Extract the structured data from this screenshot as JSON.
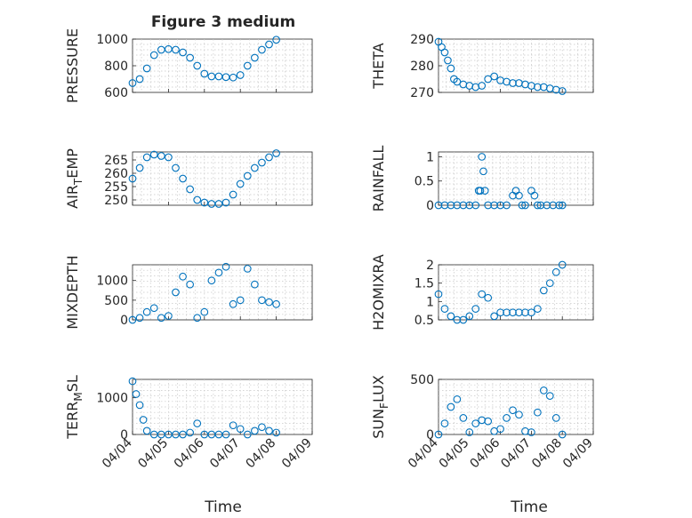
{
  "figure_title": "Figure 3 medium",
  "chart_data": [
    {
      "type": "scatter",
      "title": "Figure 3 medium",
      "ylabel": "PRESSURE",
      "ylim": [
        600,
        1000
      ],
      "yticks": [
        "600",
        "800",
        "1000"
      ],
      "ytick_values": [
        600,
        800,
        1000
      ],
      "series": [
        {
          "name": "",
          "color": "#0072BD",
          "x": [
            0.0,
            0.2,
            0.4,
            0.6,
            0.8,
            1.0,
            1.2,
            1.4,
            1.6,
            1.8,
            2.0,
            2.2,
            2.4,
            2.6,
            2.8,
            3.0,
            3.2,
            3.4,
            3.6,
            3.8,
            4.0
          ],
          "y": [
            670,
            700,
            780,
            880,
            920,
            925,
            920,
            900,
            860,
            800,
            740,
            720,
            720,
            715,
            712,
            730,
            800,
            860,
            920,
            960,
            995
          ]
        }
      ]
    },
    {
      "type": "scatter",
      "ylabel": "THETA",
      "ylim": [
        270,
        290
      ],
      "yticks": [
        "270",
        "280",
        "290"
      ],
      "ytick_values": [
        270,
        280,
        290
      ],
      "series": [
        {
          "name": "",
          "color": "#0072BD",
          "x": [
            0.0,
            0.1,
            0.2,
            0.3,
            0.4,
            0.5,
            0.6,
            0.8,
            1.0,
            1.2,
            1.4,
            1.6,
            1.8,
            2.0,
            2.2,
            2.4,
            2.6,
            2.8,
            3.0,
            3.2,
            3.4,
            3.6,
            3.8,
            4.0
          ],
          "y": [
            289,
            287,
            285,
            282,
            279,
            275,
            274,
            273,
            272.5,
            272,
            272.5,
            275,
            276,
            274.5,
            274,
            273.5,
            273.5,
            273,
            272.5,
            272,
            272,
            271.5,
            271,
            270.5
          ]
        }
      ]
    },
    {
      "type": "scatter",
      "ylabel": "AIR_TEMP",
      "ylim": [
        248,
        268
      ],
      "yticks": [
        "250",
        "255",
        "260",
        "265"
      ],
      "ytick_values": [
        250,
        255,
        260,
        265
      ],
      "series": [
        {
          "name": "",
          "color": "#0072BD",
          "x": [
            0.0,
            0.2,
            0.4,
            0.6,
            0.8,
            1.0,
            1.2,
            1.4,
            1.6,
            1.8,
            2.0,
            2.2,
            2.4,
            2.6,
            2.8,
            3.0,
            3.2,
            3.4,
            3.6,
            3.8,
            4.0
          ],
          "y": [
            258,
            262,
            266,
            267,
            266.5,
            266,
            262,
            258,
            254,
            250,
            249,
            248.5,
            248.5,
            249,
            252,
            256,
            259,
            262,
            264,
            266,
            267.5
          ]
        }
      ]
    },
    {
      "type": "scatter",
      "ylabel": "RAINFALL",
      "ylim": [
        0,
        1.1
      ],
      "yticks": [
        "0",
        "0.5",
        "1"
      ],
      "ytick_values": [
        0,
        0.5,
        1
      ],
      "series": [
        {
          "name": "",
          "color": "#0072BD",
          "x": [
            0.0,
            0.2,
            0.4,
            0.6,
            0.8,
            1.0,
            1.2,
            1.3,
            1.35,
            1.4,
            1.45,
            1.5,
            1.6,
            1.8,
            2.0,
            2.2,
            2.4,
            2.5,
            2.6,
            2.7,
            2.8,
            3.0,
            3.1,
            3.2,
            3.3,
            3.5,
            3.7,
            3.9,
            4.0
          ],
          "y": [
            0,
            0,
            0,
            0,
            0,
            0,
            0,
            0.3,
            0.3,
            1.0,
            0.7,
            0.3,
            0,
            0,
            0,
            0,
            0.2,
            0.3,
            0.2,
            0,
            0,
            0.3,
            0.2,
            0,
            0,
            0,
            0,
            0,
            0
          ]
        }
      ]
    },
    {
      "type": "scatter",
      "ylabel": "MIXDEPTH",
      "ylim": [
        0,
        1400
      ],
      "yticks": [
        "0",
        "500",
        "1000"
      ],
      "ytick_values": [
        0,
        500,
        1000
      ],
      "series": [
        {
          "name": "",
          "color": "#0072BD",
          "x": [
            0.0,
            0.2,
            0.4,
            0.6,
            0.8,
            1.0,
            1.2,
            1.4,
            1.6,
            1.8,
            2.0,
            2.2,
            2.4,
            2.6,
            2.8,
            3.0,
            3.2,
            3.4,
            3.6,
            3.8,
            4.0
          ],
          "y": [
            0,
            50,
            200,
            300,
            50,
            100,
            700,
            1100,
            900,
            50,
            200,
            1000,
            1200,
            1350,
            400,
            500,
            1300,
            900,
            500,
            450,
            400
          ]
        }
      ]
    },
    {
      "type": "scatter",
      "ylabel": "H2OMIXRA",
      "ylim": [
        0.5,
        2.0
      ],
      "yticks": [
        "0.5",
        "1",
        "1.5",
        "2"
      ],
      "ytick_values": [
        0.5,
        1,
        1.5,
        2
      ],
      "series": [
        {
          "name": "",
          "color": "#0072BD",
          "x": [
            0.0,
            0.2,
            0.4,
            0.6,
            0.8,
            1.0,
            1.2,
            1.4,
            1.6,
            1.8,
            2.0,
            2.2,
            2.4,
            2.6,
            2.8,
            3.0,
            3.2,
            3.4,
            3.6,
            3.8,
            4.0
          ],
          "y": [
            1.2,
            0.8,
            0.6,
            0.5,
            0.5,
            0.6,
            0.8,
            1.2,
            1.1,
            0.6,
            0.7,
            0.7,
            0.7,
            0.7,
            0.7,
            0.7,
            0.8,
            1.3,
            1.5,
            1.8,
            2.0
          ]
        }
      ]
    },
    {
      "type": "scatter",
      "ylabel": "TERR_MSL",
      "ylim": [
        0,
        1500
      ],
      "yticks": [
        "0",
        "1000"
      ],
      "ytick_values": [
        0,
        1000
      ],
      "series": [
        {
          "name": "",
          "color": "#0072BD",
          "x": [
            0.0,
            0.1,
            0.2,
            0.3,
            0.4,
            0.6,
            0.8,
            1.0,
            1.2,
            1.4,
            1.6,
            1.8,
            2.0,
            2.2,
            2.4,
            2.6,
            2.8,
            3.0,
            3.2,
            3.4,
            3.6,
            3.8,
            4.0
          ],
          "y": [
            1450,
            1100,
            800,
            400,
            100,
            0,
            0,
            0,
            0,
            0,
            50,
            300,
            0,
            0,
            0,
            0,
            250,
            150,
            0,
            100,
            200,
            100,
            50
          ]
        }
      ]
    },
    {
      "type": "scatter",
      "ylabel": "SUN_FLUX",
      "ylim": [
        0,
        500
      ],
      "yticks": [
        "0",
        "500"
      ],
      "ytick_values": [
        0,
        500
      ],
      "series": [
        {
          "name": "",
          "color": "#0072BD",
          "x": [
            0.0,
            0.2,
            0.4,
            0.6,
            0.8,
            1.0,
            1.2,
            1.4,
            1.6,
            1.8,
            2.0,
            2.2,
            2.4,
            2.6,
            2.8,
            3.0,
            3.2,
            3.4,
            3.6,
            3.8,
            4.0
          ],
          "y": [
            0,
            100,
            250,
            320,
            150,
            20,
            100,
            130,
            120,
            30,
            50,
            150,
            220,
            180,
            30,
            20,
            200,
            400,
            350,
            150,
            0
          ]
        }
      ]
    }
  ],
  "xaxis": {
    "label": "Time",
    "ticks": [
      "04/04",
      "04/05",
      "04/06",
      "04/07",
      "04/08",
      "04/09"
    ],
    "tick_values": [
      0,
      1,
      2,
      3,
      4,
      5
    ],
    "xlim": [
      0,
      5
    ]
  },
  "grid": true
}
